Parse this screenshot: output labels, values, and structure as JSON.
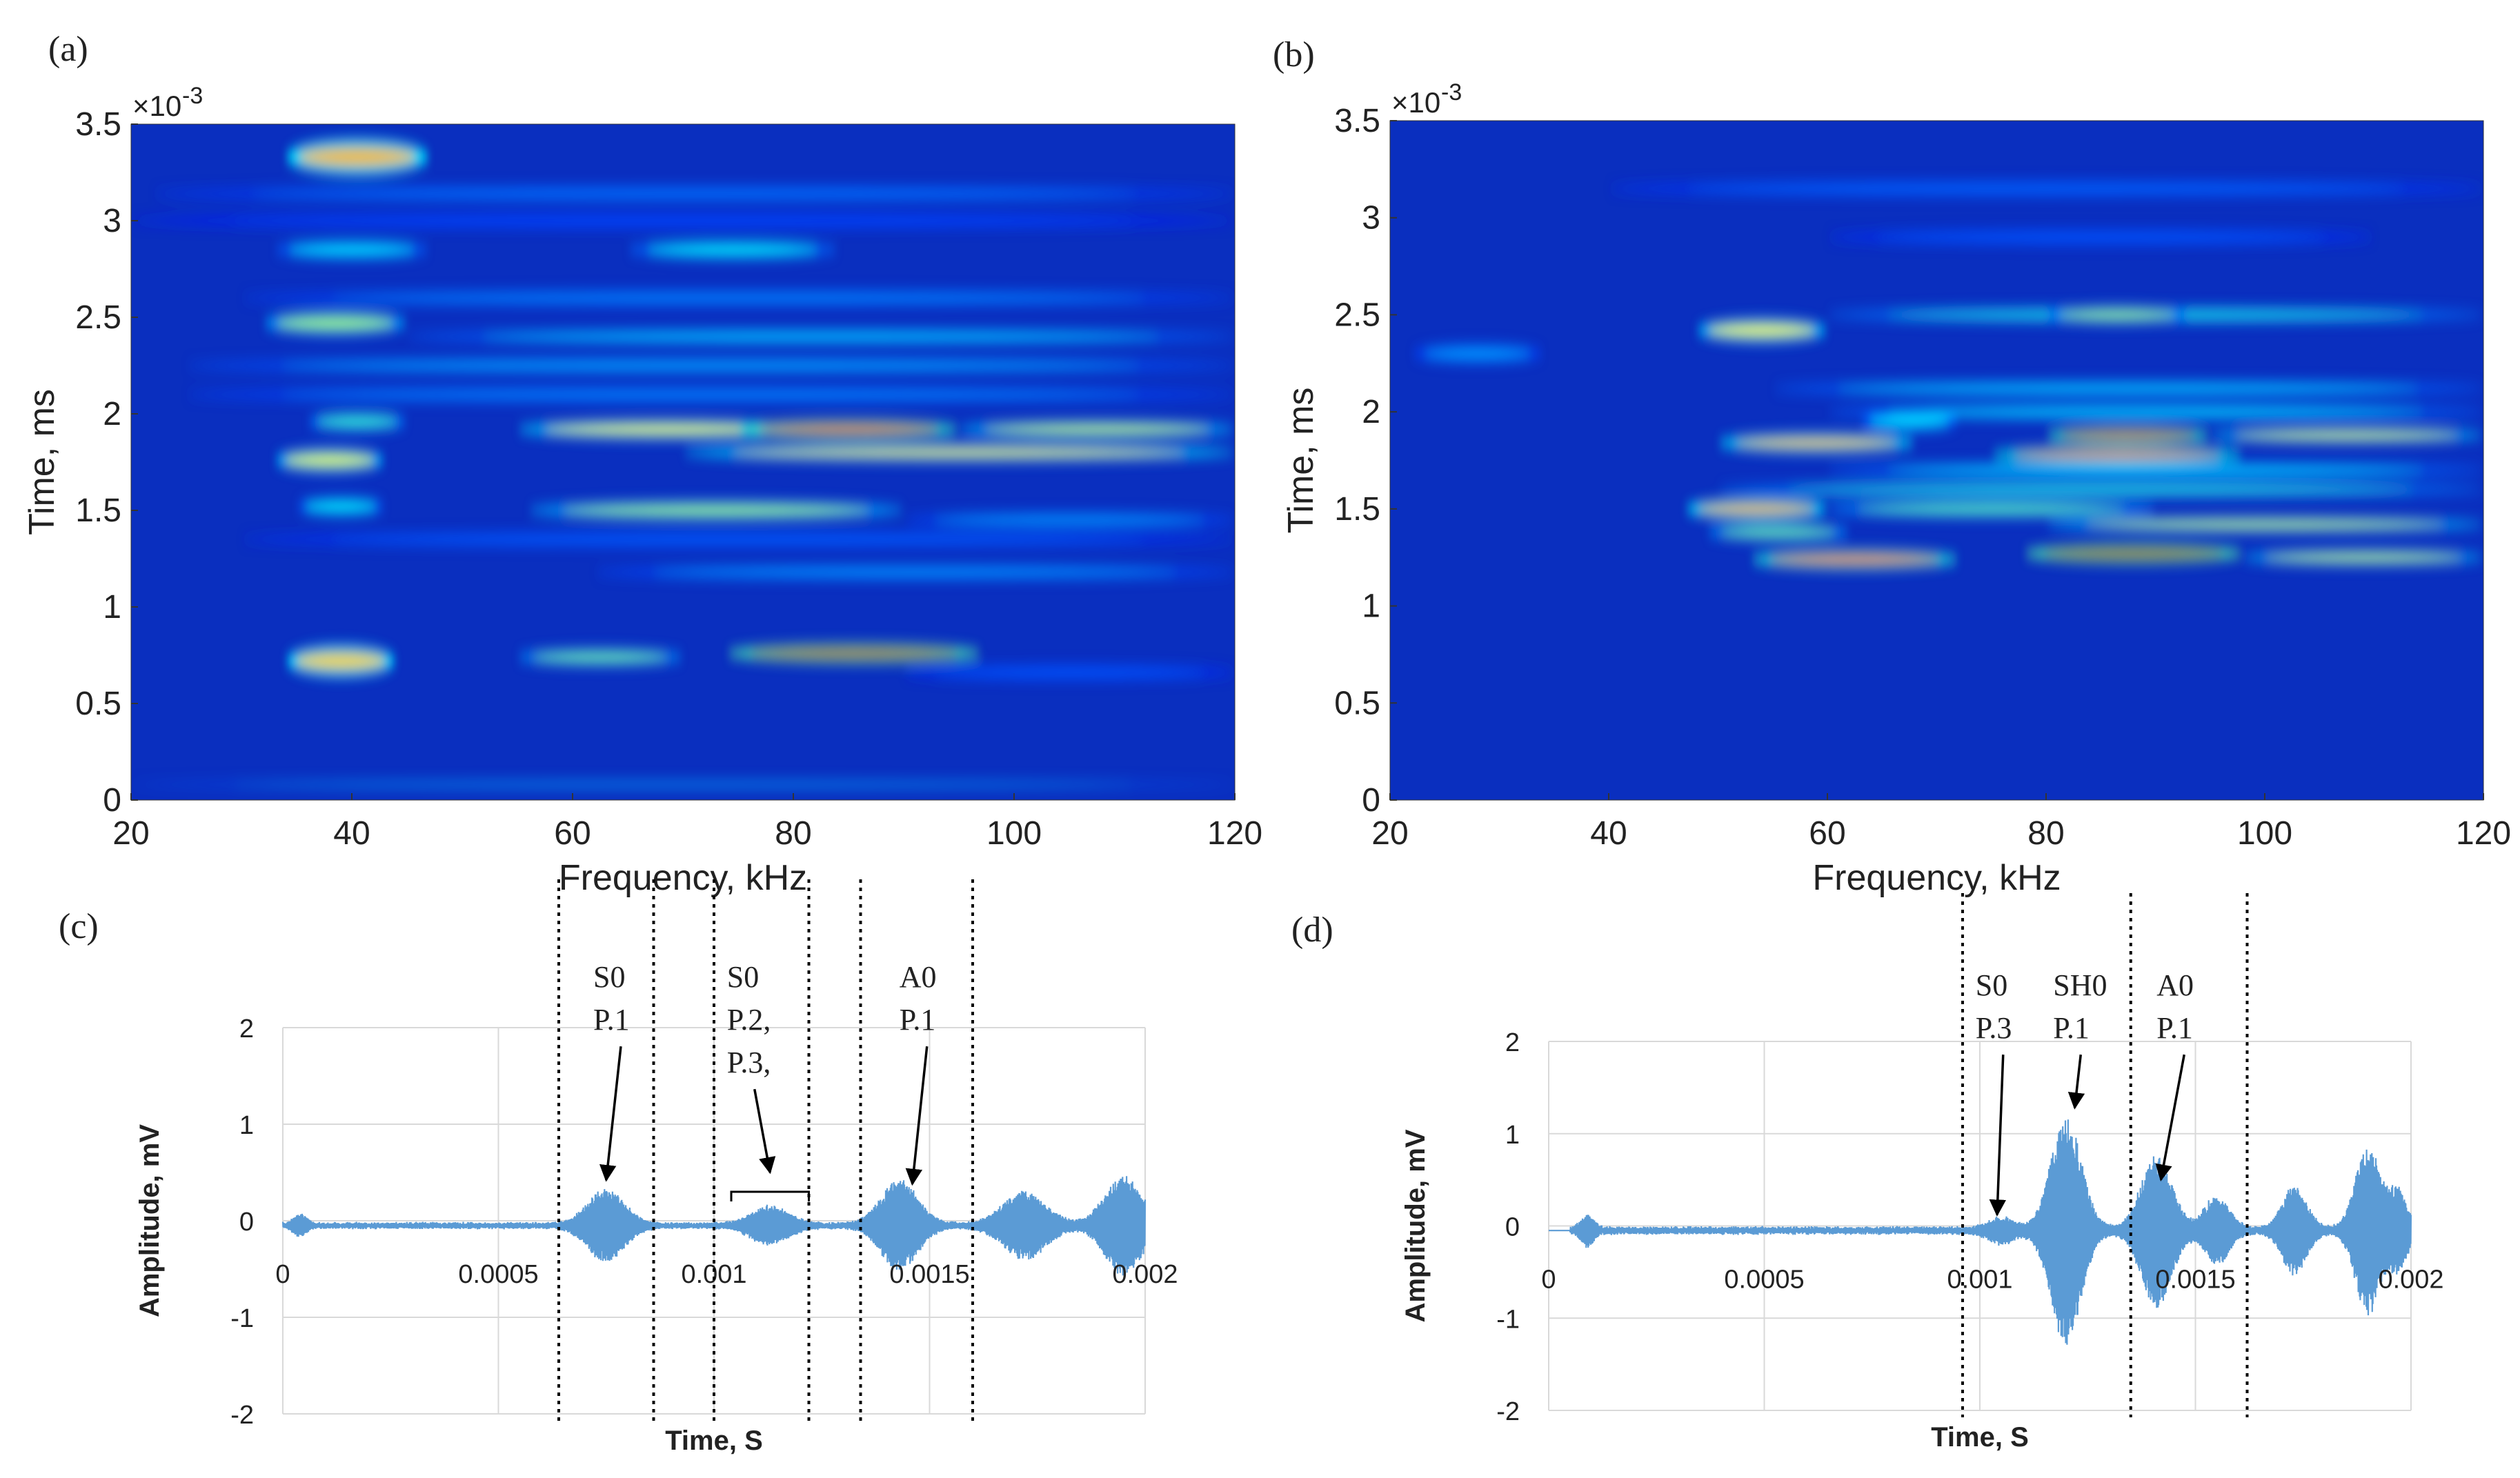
{
  "figure": {
    "colors": {
      "jet_background": "#0a2fbf",
      "wave_line": "#5b9bd5",
      "grid": "#d9d9d9",
      "axis_text": "#595959",
      "marker": "#000000"
    }
  },
  "chart_data": [
    {
      "id": "a",
      "panel_label": "(a)",
      "type": "heatmap",
      "title": "",
      "xlabel": "Frequency, kHz",
      "ylabel": "Time, ms",
      "y_exponent": "×10",
      "y_exponent_power": "-3",
      "xlim": [
        20,
        120
      ],
      "ylim": [
        0,
        3.5
      ],
      "x_ticks": [
        "20",
        "40",
        "60",
        "80",
        "100",
        "120"
      ],
      "y_ticks": [
        "0",
        "0.5",
        "1",
        "1.5",
        "2",
        "2.5",
        "3",
        "3.5"
      ],
      "bands": [
        {
          "t": 3.33,
          "f0": 34,
          "f1": 47,
          "amp": 0.68,
          "h": 0.08
        },
        {
          "t": 3.14,
          "f0": 22,
          "f1": 120,
          "amp": 0.18,
          "h": 0.03
        },
        {
          "t": 3.0,
          "f0": 20,
          "f1": 120,
          "amp": 0.12,
          "h": 0.03
        },
        {
          "t": 2.85,
          "f0": 33,
          "f1": 47,
          "amp": 0.3,
          "h": 0.04
        },
        {
          "t": 2.85,
          "f0": 65,
          "f1": 84,
          "amp": 0.32,
          "h": 0.04
        },
        {
          "t": 2.6,
          "f0": 30,
          "f1": 120,
          "amp": 0.2,
          "h": 0.03
        },
        {
          "t": 2.47,
          "f0": 32,
          "f1": 45,
          "amp": 0.5,
          "h": 0.05
        },
        {
          "t": 2.4,
          "f0": 45,
          "f1": 120,
          "amp": 0.28,
          "h": 0.03
        },
        {
          "t": 2.25,
          "f0": 25,
          "f1": 120,
          "amp": 0.24,
          "h": 0.03
        },
        {
          "t": 2.1,
          "f0": 25,
          "f1": 120,
          "amp": 0.2,
          "h": 0.03
        },
        {
          "t": 1.96,
          "f0": 36,
          "f1": 45,
          "amp": 0.38,
          "h": 0.04
        },
        {
          "t": 1.92,
          "f0": 55,
          "f1": 82,
          "amp": 0.6,
          "h": 0.04
        },
        {
          "t": 1.92,
          "f0": 75,
          "f1": 95,
          "amp": 0.9,
          "h": 0.04
        },
        {
          "t": 1.92,
          "f0": 95,
          "f1": 120,
          "amp": 0.55,
          "h": 0.035
        },
        {
          "t": 1.8,
          "f0": 70,
          "f1": 120,
          "amp": 0.62,
          "h": 0.035
        },
        {
          "t": 1.76,
          "f0": 33,
          "f1": 43,
          "amp": 0.58,
          "h": 0.05
        },
        {
          "t": 1.5,
          "f0": 56,
          "f1": 90,
          "amp": 0.5,
          "h": 0.04
        },
        {
          "t": 1.52,
          "f0": 35,
          "f1": 43,
          "amp": 0.32,
          "h": 0.04
        },
        {
          "t": 1.45,
          "f0": 90,
          "f1": 120,
          "amp": 0.22,
          "h": 0.03
        },
        {
          "t": 1.35,
          "f0": 30,
          "f1": 120,
          "amp": 0.15,
          "h": 0.03
        },
        {
          "t": 1.18,
          "f0": 62,
          "f1": 120,
          "amp": 0.22,
          "h": 0.03
        },
        {
          "t": 0.72,
          "f0": 34,
          "f1": 44,
          "amp": 0.65,
          "h": 0.07
        },
        {
          "t": 0.74,
          "f0": 55,
          "f1": 70,
          "amp": 0.45,
          "h": 0.035
        },
        {
          "t": 0.76,
          "f0": 74,
          "f1": 97,
          "amp": 0.96,
          "h": 0.04
        },
        {
          "t": 0.66,
          "f0": 90,
          "f1": 120,
          "amp": 0.14,
          "h": 0.03
        },
        {
          "t": 0.08,
          "f0": 20,
          "f1": 120,
          "amp": 0.26,
          "h": 0.012
        }
      ]
    },
    {
      "id": "b",
      "panel_label": "(b)",
      "type": "heatmap",
      "title": "",
      "xlabel": "Frequency, kHz",
      "ylabel": "Time, ms",
      "y_exponent": "×10",
      "y_exponent_power": "-3",
      "xlim": [
        20,
        120
      ],
      "ylim": [
        0,
        3.5
      ],
      "x_ticks": [
        "20",
        "40",
        "60",
        "80",
        "100",
        "120"
      ],
      "y_ticks": [
        "0",
        "0.5",
        "1",
        "1.5",
        "2",
        "2.5",
        "3",
        "3.5"
      ],
      "bands": [
        {
          "t": 3.15,
          "f0": 40,
          "f1": 120,
          "amp": 0.16,
          "h": 0.03
        },
        {
          "t": 2.9,
          "f0": 60,
          "f1": 110,
          "amp": 0.14,
          "h": 0.03
        },
        {
          "t": 2.42,
          "f0": 48,
          "f1": 60,
          "amp": 0.6,
          "h": 0.05
        },
        {
          "t": 2.5,
          "f0": 60,
          "f1": 120,
          "amp": 0.35,
          "h": 0.03
        },
        {
          "t": 2.5,
          "f0": 80,
          "f1": 93,
          "amp": 0.5,
          "h": 0.035
        },
        {
          "t": 2.3,
          "f0": 22,
          "f1": 34,
          "amp": 0.22,
          "h": 0.04
        },
        {
          "t": 2.12,
          "f0": 55,
          "f1": 120,
          "amp": 0.28,
          "h": 0.03
        },
        {
          "t": 2.0,
          "f0": 60,
          "f1": 120,
          "amp": 0.3,
          "h": 0.03
        },
        {
          "t": 1.84,
          "f0": 50,
          "f1": 68,
          "amp": 0.68,
          "h": 0.04
        },
        {
          "t": 1.95,
          "f0": 63,
          "f1": 72,
          "amp": 0.3,
          "h": 0.04
        },
        {
          "t": 1.88,
          "f0": 80,
          "f1": 95,
          "amp": 0.92,
          "h": 0.035
        },
        {
          "t": 1.88,
          "f0": 95,
          "f1": 120,
          "amp": 0.58,
          "h": 0.03
        },
        {
          "t": 1.78,
          "f0": 75,
          "f1": 98,
          "amp": 0.78,
          "h": 0.035
        },
        {
          "t": 1.7,
          "f0": 60,
          "f1": 120,
          "amp": 0.3,
          "h": 0.03
        },
        {
          "t": 1.6,
          "f0": 50,
          "f1": 120,
          "amp": 0.36,
          "h": 0.03
        },
        {
          "t": 1.5,
          "f0": 47,
          "f1": 60,
          "amp": 0.7,
          "h": 0.045
        },
        {
          "t": 1.5,
          "f0": 60,
          "f1": 90,
          "amp": 0.42,
          "h": 0.035
        },
        {
          "t": 1.42,
          "f0": 80,
          "f1": 120,
          "amp": 0.55,
          "h": 0.03
        },
        {
          "t": 1.38,
          "f0": 49,
          "f1": 62,
          "amp": 0.45,
          "h": 0.035
        },
        {
          "t": 1.24,
          "f0": 53,
          "f1": 72,
          "amp": 0.82,
          "h": 0.04
        },
        {
          "t": 1.27,
          "f0": 78,
          "f1": 98,
          "amp": 0.98,
          "h": 0.04
        },
        {
          "t": 1.25,
          "f0": 98,
          "f1": 120,
          "amp": 0.55,
          "h": 0.03
        }
      ]
    },
    {
      "id": "c",
      "panel_label": "(c)",
      "type": "line",
      "title": "",
      "xlabel": "Time, S",
      "ylabel": "Amplitude, mV",
      "xlim": [
        0,
        0.002
      ],
      "ylim": [
        -2,
        2
      ],
      "x_ticks": [
        "0",
        "0.0005",
        "0.001",
        "0.0015",
        "0.002"
      ],
      "y_ticks": [
        "-2",
        "-1",
        "0",
        "1",
        "2"
      ],
      "baseline": -0.05,
      "noise": 0.04,
      "dashed_lines_s": [
        0.00064,
        0.00086,
        0.001,
        0.00122,
        0.00134,
        0.0016
      ],
      "packets": [
        {
          "t": 4e-05,
          "w": 2e-05,
          "amp": 0.1
        },
        {
          "t": 0.00075,
          "w": 6e-05,
          "amp": 0.35
        },
        {
          "t": 0.00113,
          "w": 6e-05,
          "amp": 0.18
        },
        {
          "t": 0.00143,
          "w": 6e-05,
          "amp": 0.45
        },
        {
          "t": 0.00172,
          "w": 7e-05,
          "amp": 0.33
        },
        {
          "t": 0.00195,
          "w": 6e-05,
          "amp": 0.5
        }
      ],
      "annotations": [
        {
          "lines": [
            "S0",
            "P.1"
          ],
          "label_x": 0.00072,
          "label_y": 2.42,
          "arrow_to": [
            0.00075,
            0.42
          ]
        },
        {
          "lines": [
            "S0",
            "P.2,",
            "P.3,"
          ],
          "label_x": 0.00103,
          "label_y": 2.42,
          "arrow_to": [
            0.00113,
            0.5
          ],
          "bracket": [
            0.00104,
            0.00122,
            0.3
          ]
        },
        {
          "lines": [
            "A0",
            "P.1"
          ],
          "label_x": 0.00143,
          "label_y": 2.42,
          "arrow_to": [
            0.00146,
            0.38
          ]
        }
      ]
    },
    {
      "id": "d",
      "panel_label": "(d)",
      "type": "line",
      "title": "",
      "xlabel": "Time, S",
      "ylabel": "Amplitude, mV",
      "xlim": [
        0,
        0.002
      ],
      "ylim": [
        -2,
        2
      ],
      "x_ticks": [
        "0",
        "0.0005",
        "0.001",
        "0.0015",
        "0.002"
      ],
      "y_ticks": [
        "-2",
        "-1",
        "0",
        "1",
        "2"
      ],
      "baseline": -0.05,
      "noise": 0.05,
      "dashed_lines_s": [
        0.00096,
        0.00135,
        0.00162
      ],
      "packets": [
        {
          "t": 9e-05,
          "w": 2e-05,
          "amp": 0.15
        },
        {
          "t": 0.00105,
          "w": 4e-05,
          "amp": 0.12
        },
        {
          "t": 0.0012,
          "w": 5e-05,
          "amp": 1.2
        },
        {
          "t": 0.00141,
          "w": 5e-05,
          "amp": 0.8
        },
        {
          "t": 0.00155,
          "w": 4e-05,
          "amp": 0.35
        },
        {
          "t": 0.00173,
          "w": 4e-05,
          "amp": 0.45
        },
        {
          "t": 0.0019,
          "w": 4e-05,
          "amp": 0.9
        },
        {
          "t": 0.00197,
          "w": 3e-05,
          "amp": 0.4
        }
      ],
      "annotations": [
        {
          "lines": [
            "S0",
            "P.3"
          ],
          "label_x": 0.00099,
          "label_y": 2.5,
          "arrow_to": [
            0.00104,
            0.12
          ]
        },
        {
          "lines": [
            "SH0",
            "P.1"
          ],
          "label_x": 0.00117,
          "label_y": 2.5,
          "arrow_to": [
            0.00122,
            1.28
          ]
        },
        {
          "lines": [
            "A0",
            "P.1"
          ],
          "label_x": 0.00141,
          "label_y": 2.5,
          "arrow_to": [
            0.00142,
            0.5
          ]
        }
      ]
    }
  ]
}
